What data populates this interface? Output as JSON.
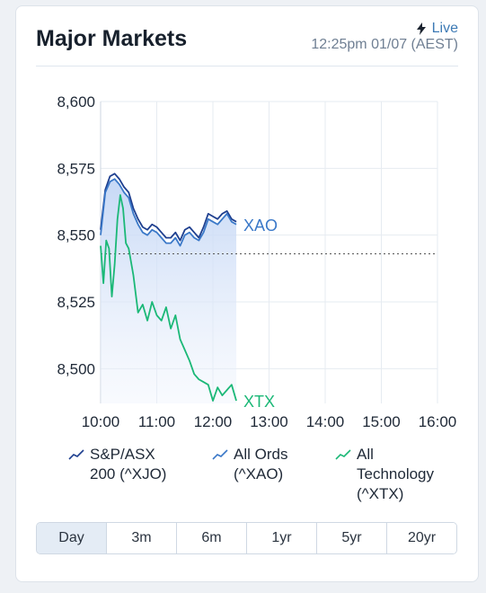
{
  "header": {
    "title": "Major Markets",
    "live_label": "Live",
    "live_icon": "lightning-icon",
    "timestamp": "12:25pm 01/07 (AEST)"
  },
  "colors": {
    "xjo": "#1e3f8f",
    "xao": "#3a78c8",
    "xtx": "#1bb877",
    "area_top": "#c9daf6",
    "grid": "#e6ebf1"
  },
  "chart_data": {
    "type": "line",
    "y_ticks": [
      "8,600",
      "8,575",
      "8,550",
      "8,525",
      "8,500"
    ],
    "x_ticks": [
      "10:00",
      "11:00",
      "12:00",
      "13:00",
      "14:00",
      "15:00",
      "16:00"
    ],
    "ylim": [
      8487,
      8600
    ],
    "x_range": [
      "10:00",
      "16:00"
    ],
    "reference_line_value": 8543,
    "grid": true,
    "series": [
      {
        "name": "S&P/ASX 200 (^XJO)",
        "x": [
          "10:00",
          "10:05",
          "10:10",
          "10:15",
          "10:20",
          "10:25",
          "10:30",
          "10:35",
          "10:40",
          "10:45",
          "10:50",
          "10:55",
          "11:00",
          "11:05",
          "11:10",
          "11:15",
          "11:20",
          "11:25",
          "11:30",
          "11:35",
          "11:40",
          "11:45",
          "11:50",
          "11:55",
          "12:00",
          "12:05",
          "12:10",
          "12:15",
          "12:20",
          "12:25"
        ],
        "y": [
          8552,
          8567,
          8572,
          8573,
          8571,
          8568,
          8566,
          8560,
          8556,
          8553,
          8552,
          8554,
          8553,
          8551,
          8549,
          8549,
          8551,
          8548,
          8552,
          8553,
          8551,
          8549,
          8553,
          8558,
          8557,
          8556,
          8558,
          8559,
          8556,
          8555
        ]
      },
      {
        "name": "All Ords (^XAO)",
        "label": "XAO",
        "x": [
          "10:00",
          "10:05",
          "10:10",
          "10:15",
          "10:20",
          "10:25",
          "10:30",
          "10:35",
          "10:40",
          "10:45",
          "10:50",
          "10:55",
          "11:00",
          "11:05",
          "11:10",
          "11:15",
          "11:20",
          "11:25",
          "11:30",
          "11:35",
          "11:40",
          "11:45",
          "11:50",
          "11:55",
          "12:00",
          "12:05",
          "12:10",
          "12:15",
          "12:20",
          "12:25"
        ],
        "y": [
          8550,
          8566,
          8570,
          8571,
          8569,
          8566,
          8564,
          8558,
          8554,
          8551,
          8550,
          8552,
          8551,
          8549,
          8547,
          8547,
          8549,
          8546,
          8550,
          8551,
          8549,
          8548,
          8551,
          8556,
          8555,
          8554,
          8556,
          8558,
          8555,
          8554
        ]
      },
      {
        "name": "All Technology (^XTX)",
        "label": "XTX",
        "x": [
          "10:00",
          "10:03",
          "10:06",
          "10:09",
          "10:12",
          "10:15",
          "10:18",
          "10:21",
          "10:24",
          "10:27",
          "10:30",
          "10:35",
          "10:40",
          "10:45",
          "10:50",
          "10:55",
          "11:00",
          "11:05",
          "11:10",
          "11:15",
          "11:20",
          "11:25",
          "11:30",
          "11:35",
          "11:40",
          "11:45",
          "11:50",
          "11:55",
          "12:00",
          "12:05",
          "12:10",
          "12:15",
          "12:20",
          "12:25"
        ],
        "y": [
          8546,
          8532,
          8548,
          8545,
          8527,
          8539,
          8556,
          8565,
          8560,
          8547,
          8545,
          8535,
          8521,
          8524,
          8518,
          8525,
          8520,
          8518,
          8523,
          8515,
          8520,
          8511,
          8507,
          8503,
          8498,
          8496,
          8495,
          8494,
          8488,
          8493,
          8490,
          8492,
          8494,
          8488
        ]
      }
    ]
  },
  "legend": [
    {
      "label_lines": [
        "S&P/ASX",
        "200 (^XJO)"
      ],
      "color": "#1e3f8f"
    },
    {
      "label_lines": [
        "All Ords",
        "(^XAO)"
      ],
      "color": "#3a78c8"
    },
    {
      "label_lines": [
        "All",
        "Technology",
        "(^XTX)"
      ],
      "color": "#1bb877"
    }
  ],
  "tabs": [
    {
      "label": "Day",
      "active": true
    },
    {
      "label": "3m",
      "active": false
    },
    {
      "label": "6m",
      "active": false
    },
    {
      "label": "1yr",
      "active": false
    },
    {
      "label": "5yr",
      "active": false
    },
    {
      "label": "20yr",
      "active": false
    }
  ]
}
